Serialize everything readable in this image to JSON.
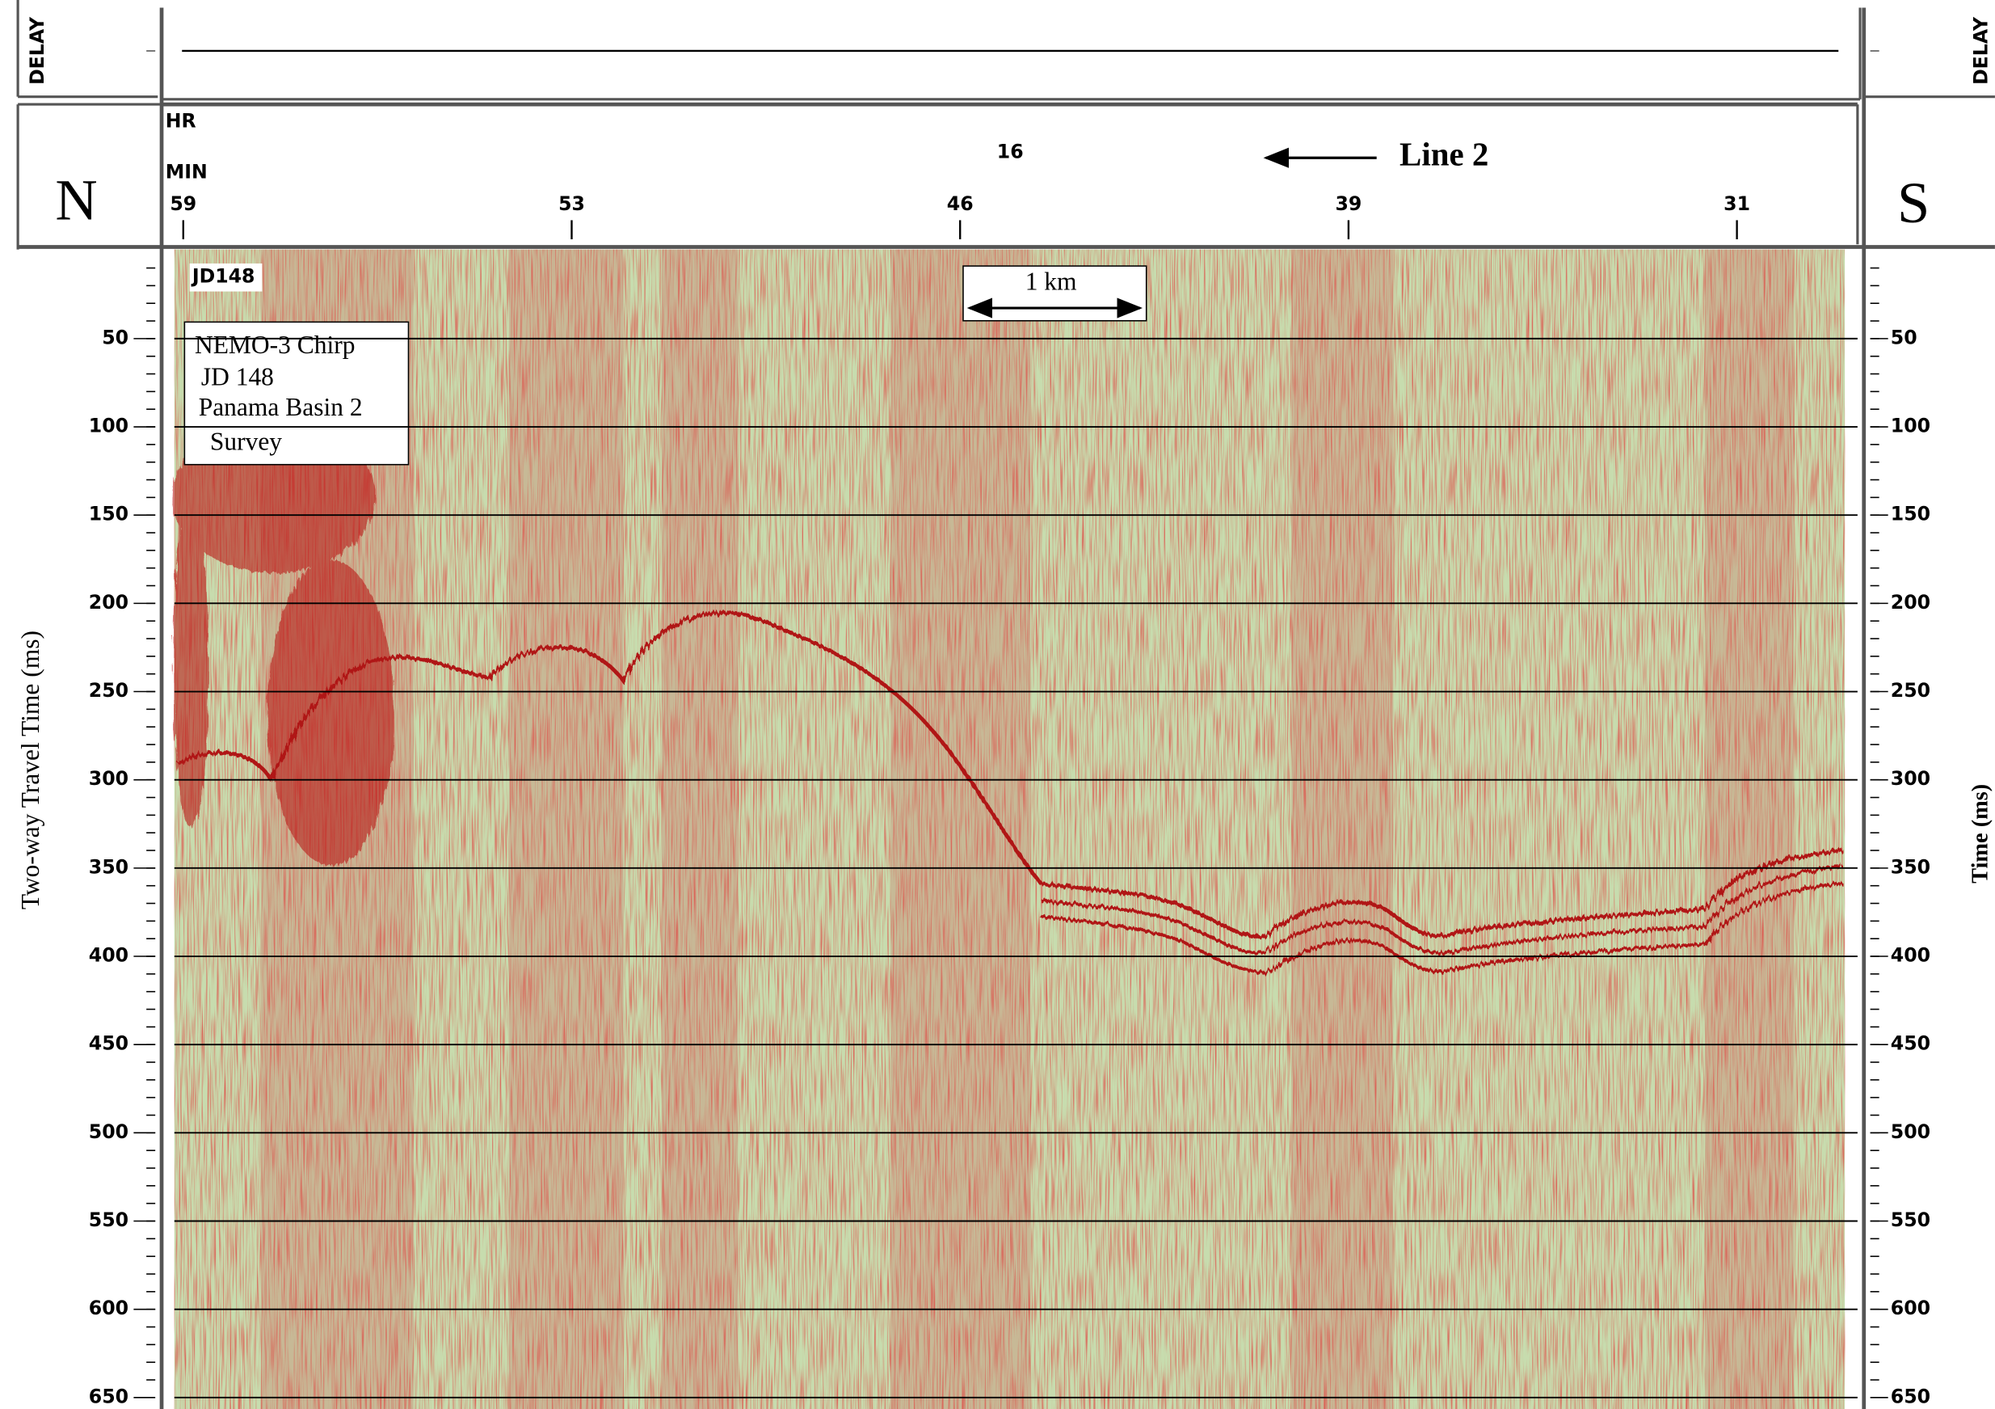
{
  "chart_data": {
    "type": "profile",
    "delay_label": "DELAY",
    "hour_label": "HR",
    "minute_label": "MIN",
    "hour": 16,
    "direction_label": "Line 2",
    "left_end": "N",
    "right_end": "S",
    "record_label": "JD148",
    "scale_bar": "1 km",
    "info_box": [
      "NEMO-3 Chirp",
      "JD 148",
      "Panama Basin 2",
      "Survey"
    ],
    "x_labels": [
      59,
      53,
      46,
      39,
      31
    ],
    "ylabel": "Two-way Travel Time (ms)",
    "y2label": "Time (ms)",
    "ylim": [
      0,
      650
    ],
    "yticks": [
      50,
      100,
      150,
      200,
      250,
      300,
      350,
      400,
      450,
      500,
      550,
      600,
      650
    ],
    "y2lim": [
      0,
      650
    ],
    "y2ticks": [
      50,
      100,
      150,
      200,
      250,
      300,
      350,
      400,
      450,
      500,
      550,
      600,
      650
    ],
    "grid": true
  }
}
